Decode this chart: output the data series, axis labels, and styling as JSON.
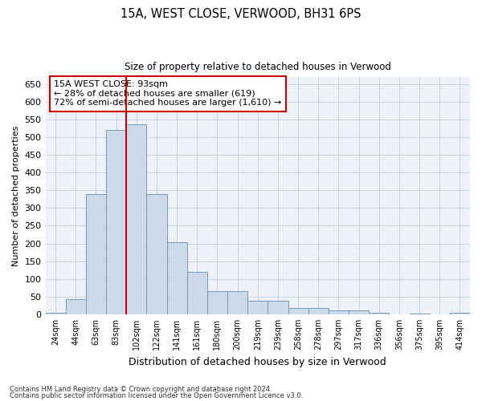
{
  "title1": "15A, WEST CLOSE, VERWOOD, BH31 6PS",
  "title2": "Size of property relative to detached houses in Verwood",
  "xlabel": "Distribution of detached houses by size in Verwood",
  "ylabel": "Number of detached properties",
  "bar_labels": [
    "24sqm",
    "44sqm",
    "63sqm",
    "83sqm",
    "102sqm",
    "122sqm",
    "141sqm",
    "161sqm",
    "180sqm",
    "200sqm",
    "219sqm",
    "239sqm",
    "258sqm",
    "278sqm",
    "297sqm",
    "317sqm",
    "336sqm",
    "356sqm",
    "375sqm",
    "395sqm",
    "414sqm"
  ],
  "bar_values": [
    5,
    42,
    340,
    520,
    535,
    340,
    204,
    120,
    65,
    65,
    38,
    38,
    19,
    19,
    12,
    12,
    5,
    0,
    3,
    0,
    5
  ],
  "bar_color": "#ccd9e8",
  "bar_edge_color": "#7799bb",
  "vline_color": "#cc0000",
  "annotation_text": "15A WEST CLOSE: 93sqm\n← 28% of detached houses are smaller (619)\n72% of semi-detached houses are larger (1,610) →",
  "annotation_box_color": "#ffffff",
  "annotation_box_edge_color": "#cc0000",
  "ylim": [
    0,
    670
  ],
  "yticks": [
    0,
    50,
    100,
    150,
    200,
    250,
    300,
    350,
    400,
    450,
    500,
    550,
    600,
    650
  ],
  "grid_color": "#c5d5e5",
  "footer1": "Contains HM Land Registry data © Crown copyright and database right 2024.",
  "footer2": "Contains public sector information licensed under the Open Government Licence v3.0.",
  "bg_color": "#eef2f8"
}
